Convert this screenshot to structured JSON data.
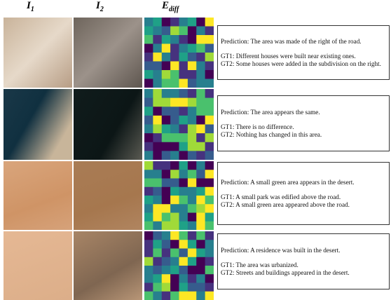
{
  "columns": [
    {
      "symbol": "I",
      "subscript": "1"
    },
    {
      "symbol": "I",
      "subscript": "2"
    },
    {
      "symbol": "E",
      "subscript": "diff"
    }
  ],
  "rows": [
    {
      "prediction": "Prediction: The area was made of the right of the road.",
      "gt1": "GT1: Different houses were built near existing ones.",
      "gt2": "GT2: Some houses were added in the subdivision on the right."
    },
    {
      "prediction": "Prediction: The area appears the same.",
      "gt1": "GT1: There is no difference.",
      "gt2": "GT2: Nothing has changed in this area."
    },
    {
      "prediction": "Prediction: A small green area appears in the desert.",
      "gt1": "GT1: A small park was edified above the road.",
      "gt2": "GT2: A small green area appeared above the road."
    },
    {
      "prediction": "Prediction: A residence was built in the desert.",
      "gt1": "GT1: The area was urbanized.",
      "gt2": "GT2: Streets and buildings appeared in the desert."
    }
  ]
}
